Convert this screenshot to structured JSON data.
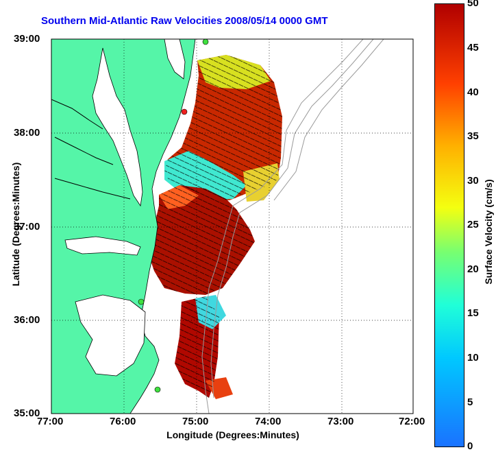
{
  "title": "Southern Mid-Atlantic Raw Velocities 2008/05/14 0000 GMT",
  "axes": {
    "xlabel": "Longitude (Degrees:Minutes)",
    "ylabel": "Latitude (Degrees:Minutes)",
    "x_ticks": [
      "77:00",
      "76:00",
      "75:00",
      "74:00",
      "73:00",
      "72:00"
    ],
    "y_ticks": [
      "39:00",
      "38:00",
      "37:00",
      "36:00",
      "35:00"
    ]
  },
  "colorbar": {
    "label": "Surface Velocity (cm/s)",
    "ticks": [
      "50",
      "45",
      "40",
      "35",
      "30",
      "25",
      "20",
      "15",
      "10",
      "5",
      "0"
    ],
    "range": [
      0,
      50
    ]
  },
  "colors": {
    "land": "#55f5a8",
    "title": "#0000ee",
    "station_green": "#40e040",
    "station_red": "#ee2020"
  }
}
